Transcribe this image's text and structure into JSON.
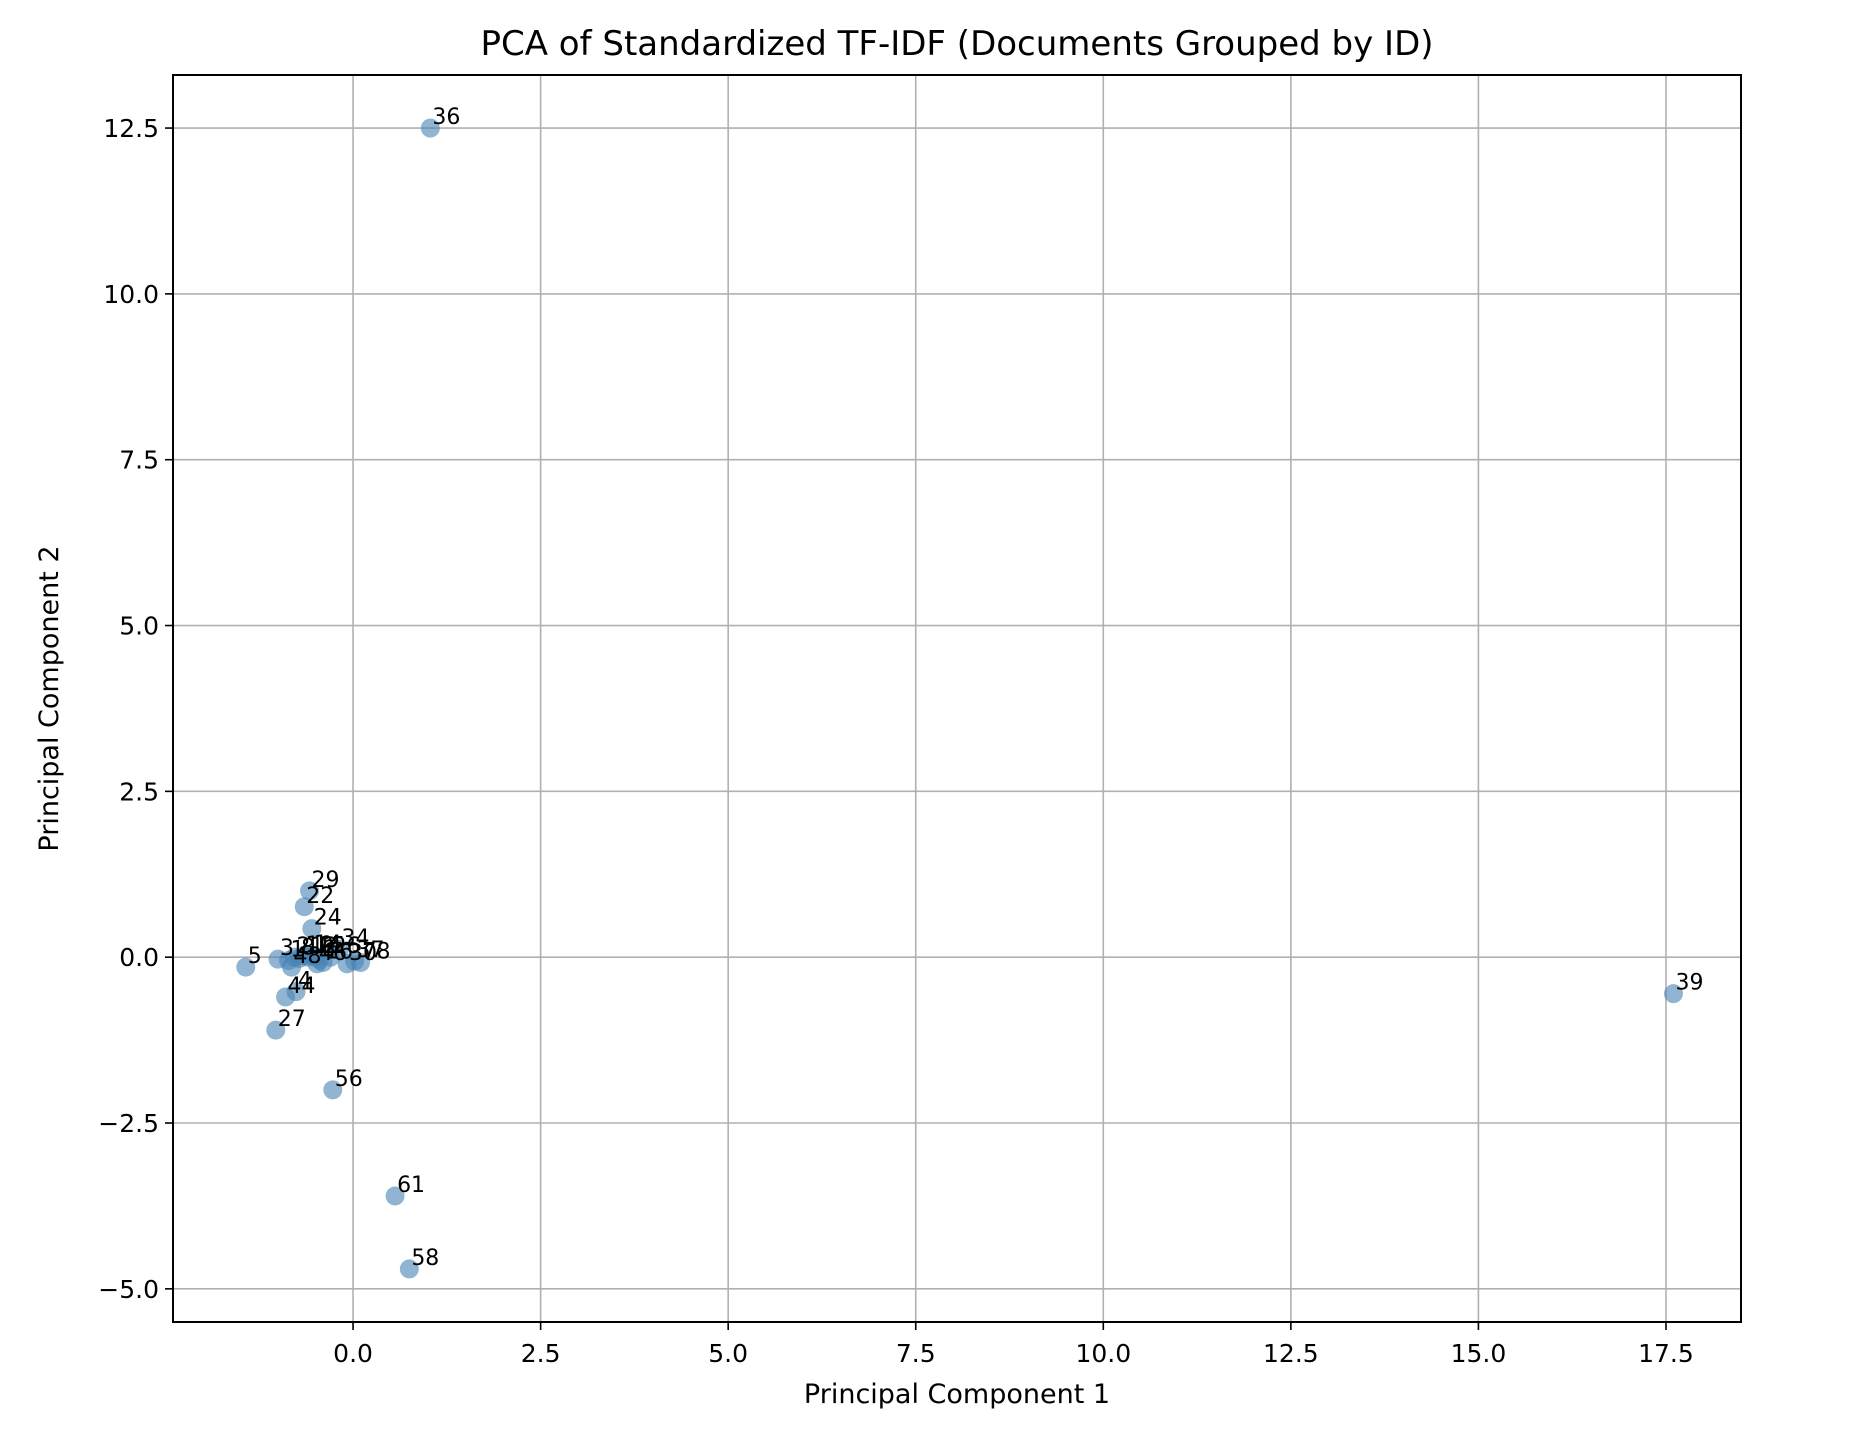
{
  "chart_data": {
    "type": "scatter",
    "title": "PCA of Standardized TF-IDF (Documents Grouped by ID)",
    "xlabel": "Principal Component 1",
    "ylabel": "Principal Component 2",
    "xlim": [
      -2.4,
      18.5
    ],
    "ylim": [
      -5.5,
      13.3
    ],
    "xticks": [
      0.0,
      2.5,
      5.0,
      7.5,
      10.0,
      12.5,
      15.0,
      17.5
    ],
    "yticks": [
      -5.0,
      -2.5,
      0.0,
      2.5,
      5.0,
      7.5,
      10.0,
      12.5
    ],
    "xtick_labels": [
      "0.0",
      "2.5",
      "5.0",
      "7.5",
      "10.0",
      "12.5",
      "15.0",
      "17.5"
    ],
    "ytick_labels": [
      "−5.0",
      "−2.5",
      "0.0",
      "2.5",
      "5.0",
      "7.5",
      "10.0",
      "12.5"
    ],
    "grid": true,
    "marker_color": "#4682b4",
    "points": [
      {
        "label": "36",
        "x": 1.03,
        "y": 12.5
      },
      {
        "label": "39",
        "x": 17.6,
        "y": -0.55
      },
      {
        "label": "29",
        "x": -0.58,
        "y": 1.0
      },
      {
        "label": "22",
        "x": -0.65,
        "y": 0.76
      },
      {
        "label": "24",
        "x": -0.55,
        "y": 0.43
      },
      {
        "label": "34",
        "x": -0.18,
        "y": 0.12
      },
      {
        "label": "5",
        "x": -1.43,
        "y": -0.15
      },
      {
        "label": "3",
        "x": -1.0,
        "y": -0.03
      },
      {
        "label": "1",
        "x": -0.86,
        "y": -0.05
      },
      {
        "label": "2",
        "x": -0.78,
        "y": 0.0
      },
      {
        "label": "8",
        "x": -0.72,
        "y": -0.02
      },
      {
        "label": "10",
        "x": -0.66,
        "y": 0.02
      },
      {
        "label": "12",
        "x": -0.6,
        "y": 0.0
      },
      {
        "label": "14",
        "x": -0.55,
        "y": 0.03
      },
      {
        "label": "15",
        "x": -0.5,
        "y": 0.01
      },
      {
        "label": "6",
        "x": -0.45,
        "y": -0.04
      },
      {
        "label": "48",
        "x": -0.82,
        "y": -0.15
      },
      {
        "label": "46",
        "x": -0.48,
        "y": -0.1
      },
      {
        "label": "16",
        "x": -0.4,
        "y": -0.08
      },
      {
        "label": "26",
        "x": -0.3,
        "y": 0.0
      },
      {
        "label": "30",
        "x": -0.08,
        "y": -0.1
      },
      {
        "label": "37",
        "x": 0.02,
        "y": -0.06
      },
      {
        "label": "78",
        "x": 0.1,
        "y": -0.08
      },
      {
        "label": "4",
        "x": -0.76,
        "y": -0.52
      },
      {
        "label": "44",
        "x": -0.9,
        "y": -0.6
      },
      {
        "label": "27",
        "x": -1.03,
        "y": -1.1
      },
      {
        "label": "56",
        "x": -0.27,
        "y": -2.0
      },
      {
        "label": "61",
        "x": 0.56,
        "y": -3.6
      },
      {
        "label": "58",
        "x": 0.75,
        "y": -4.7
      }
    ]
  }
}
